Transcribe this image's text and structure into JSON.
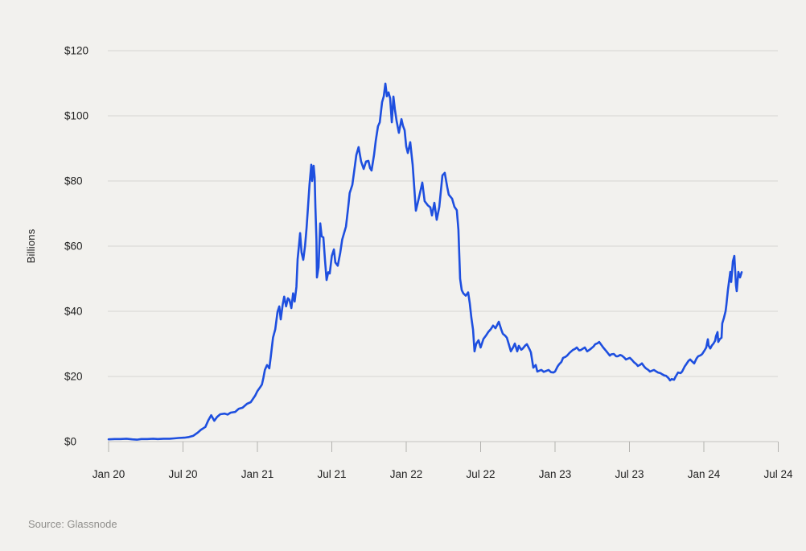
{
  "page": {
    "background": "#f2f1ee"
  },
  "chart": {
    "ylabel": "Billions",
    "source": "Source: Glassnode"
  },
  "chart_data": {
    "type": "line",
    "title": "",
    "xlabel": "",
    "ylabel": "Billions",
    "x_unit": "years since Jan 2020",
    "xlim": [
      0,
      4.5
    ],
    "ylim": [
      0,
      120
    ],
    "grid": true,
    "legend": "none",
    "palette": {
      "line_color": "#1e4fdf",
      "grid_color": "#d6d5d2",
      "axis_color": "#c4c3c0",
      "tick_color": "#b3b2af",
      "label_color": "#1f1f1f",
      "source_color": "#8f8e8b",
      "background": "#f2f1ee"
    },
    "x_ticks": [
      {
        "pos": 0.0,
        "label": "Jan 20"
      },
      {
        "pos": 0.5,
        "label": "Jul 20"
      },
      {
        "pos": 1.0,
        "label": "Jan 21"
      },
      {
        "pos": 1.5,
        "label": "Jul 21"
      },
      {
        "pos": 2.0,
        "label": "Jan 22"
      },
      {
        "pos": 2.5,
        "label": "Jul 22"
      },
      {
        "pos": 3.0,
        "label": "Jan 23"
      },
      {
        "pos": 3.5,
        "label": "Jul 23"
      },
      {
        "pos": 4.0,
        "label": "Jan 24"
      },
      {
        "pos": 4.5,
        "label": "Jul 24"
      }
    ],
    "y_ticks": [
      {
        "value": 0,
        "label": "$0"
      },
      {
        "value": 20,
        "label": "$20"
      },
      {
        "value": 40,
        "label": "$40"
      },
      {
        "value": 60,
        "label": "$60"
      },
      {
        "value": 80,
        "label": "$80"
      },
      {
        "value": 100,
        "label": "$100"
      },
      {
        "value": 120,
        "label": "$120"
      }
    ],
    "points": [
      [
        0.0,
        0.7
      ],
      [
        0.04,
        0.8
      ],
      [
        0.08,
        0.8
      ],
      [
        0.12,
        0.9
      ],
      [
        0.16,
        0.7
      ],
      [
        0.19,
        0.6
      ],
      [
        0.22,
        0.8
      ],
      [
        0.26,
        0.8
      ],
      [
        0.3,
        0.9
      ],
      [
        0.33,
        0.8
      ],
      [
        0.37,
        0.9
      ],
      [
        0.41,
        0.9
      ],
      [
        0.44,
        1.0
      ],
      [
        0.47,
        1.1
      ],
      [
        0.51,
        1.2
      ],
      [
        0.54,
        1.4
      ],
      [
        0.57,
        1.8
      ],
      [
        0.6,
        2.8
      ],
      [
        0.62,
        3.6
      ],
      [
        0.65,
        4.5
      ],
      [
        0.67,
        6.5
      ],
      [
        0.69,
        8.1
      ],
      [
        0.71,
        6.4
      ],
      [
        0.73,
        7.6
      ],
      [
        0.75,
        8.4
      ],
      [
        0.78,
        8.6
      ],
      [
        0.8,
        8.3
      ],
      [
        0.82,
        8.9
      ],
      [
        0.85,
        9.1
      ],
      [
        0.875,
        10.1
      ],
      [
        0.9,
        10.4
      ],
      [
        0.93,
        11.6
      ],
      [
        0.955,
        12.1
      ],
      [
        0.985,
        14.1
      ],
      [
        1.0,
        15.5
      ],
      [
        1.02,
        16.8
      ],
      [
        1.03,
        17.5
      ],
      [
        1.04,
        19.5
      ],
      [
        1.05,
        22.0
      ],
      [
        1.065,
        23.5
      ],
      [
        1.08,
        22.5
      ],
      [
        1.09,
        26.0
      ],
      [
        1.105,
        31.9
      ],
      [
        1.12,
        34.5
      ],
      [
        1.135,
        39.8
      ],
      [
        1.147,
        41.5
      ],
      [
        1.157,
        37.5
      ],
      [
        1.17,
        42.0
      ],
      [
        1.18,
        44.5
      ],
      [
        1.193,
        41.5
      ],
      [
        1.205,
        44.0
      ],
      [
        1.215,
        43.5
      ],
      [
        1.228,
        41.0
      ],
      [
        1.24,
        45.5
      ],
      [
        1.25,
        43.0
      ],
      [
        1.262,
        47.5
      ],
      [
        1.27,
        56.0
      ],
      [
        1.28,
        60.5
      ],
      [
        1.287,
        64.0
      ],
      [
        1.297,
        58.0
      ],
      [
        1.308,
        55.8
      ],
      [
        1.32,
        60.0
      ],
      [
        1.33,
        65.5
      ],
      [
        1.34,
        72.0
      ],
      [
        1.35,
        79.0
      ],
      [
        1.362,
        85.0
      ],
      [
        1.368,
        80.0
      ],
      [
        1.378,
        84.7
      ],
      [
        1.385,
        81.0
      ],
      [
        1.39,
        72.0
      ],
      [
        1.397,
        62.0
      ],
      [
        1.4,
        50.4
      ],
      [
        1.411,
        53.5
      ],
      [
        1.422,
        67.0
      ],
      [
        1.432,
        63.0
      ],
      [
        1.443,
        62.7
      ],
      [
        1.454,
        55.8
      ],
      [
        1.465,
        49.6
      ],
      [
        1.476,
        52.0
      ],
      [
        1.486,
        51.6
      ],
      [
        1.5,
        57.0
      ],
      [
        1.514,
        59.0
      ],
      [
        1.524,
        55.0
      ],
      [
        1.54,
        54.0
      ],
      [
        1.557,
        58.0
      ],
      [
        1.57,
        62.0
      ],
      [
        1.595,
        66.0
      ],
      [
        1.61,
        72.0
      ],
      [
        1.62,
        76.3
      ],
      [
        1.638,
        78.8
      ],
      [
        1.65,
        83.0
      ],
      [
        1.665,
        88.0
      ],
      [
        1.68,
        90.4
      ],
      [
        1.697,
        86.0
      ],
      [
        1.714,
        83.7
      ],
      [
        1.73,
        86.0
      ],
      [
        1.746,
        86.2
      ],
      [
        1.757,
        84.0
      ],
      [
        1.767,
        83.2
      ],
      [
        1.784,
        88.0
      ],
      [
        1.795,
        92.3
      ],
      [
        1.81,
        96.8
      ],
      [
        1.822,
        98.0
      ],
      [
        1.838,
        104.2
      ],
      [
        1.849,
        106.0
      ],
      [
        1.86,
        109.9
      ],
      [
        1.87,
        106.0
      ],
      [
        1.881,
        107.2
      ],
      [
        1.892,
        105.4
      ],
      [
        1.903,
        98.0
      ],
      [
        1.914,
        105.9
      ],
      [
        1.924,
        102.0
      ],
      [
        1.935,
        98.5
      ],
      [
        1.951,
        94.8
      ],
      [
        1.968,
        99.0
      ],
      [
        1.978,
        97.0
      ],
      [
        1.989,
        95.6
      ],
      [
        2.0,
        90.6
      ],
      [
        2.011,
        88.6
      ],
      [
        2.027,
        91.9
      ],
      [
        2.043,
        85.0
      ],
      [
        2.065,
        70.9
      ],
      [
        2.081,
        74.0
      ],
      [
        2.108,
        79.5
      ],
      [
        2.124,
        73.8
      ],
      [
        2.146,
        72.5
      ],
      [
        2.162,
        71.9
      ],
      [
        2.173,
        69.4
      ],
      [
        2.189,
        73.3
      ],
      [
        2.205,
        68.1
      ],
      [
        2.222,
        72.0
      ],
      [
        2.243,
        81.7
      ],
      [
        2.259,
        82.5
      ],
      [
        2.276,
        78.0
      ],
      [
        2.286,
        75.8
      ],
      [
        2.308,
        74.6
      ],
      [
        2.324,
        72.1
      ],
      [
        2.34,
        71.0
      ],
      [
        2.351,
        65.0
      ],
      [
        2.362,
        50.0
      ],
      [
        2.373,
        46.5
      ],
      [
        2.384,
        45.5
      ],
      [
        2.4,
        44.8
      ],
      [
        2.416,
        45.8
      ],
      [
        2.427,
        42.5
      ],
      [
        2.438,
        38.0
      ],
      [
        2.449,
        34.3
      ],
      [
        2.459,
        27.7
      ],
      [
        2.47,
        30.0
      ],
      [
        2.486,
        31.1
      ],
      [
        2.5,
        28.9
      ],
      [
        2.519,
        31.5
      ],
      [
        2.535,
        32.5
      ],
      [
        2.551,
        33.6
      ],
      [
        2.568,
        34.5
      ],
      [
        2.584,
        35.6
      ],
      [
        2.6,
        34.8
      ],
      [
        2.622,
        36.8
      ],
      [
        2.638,
        34.5
      ],
      [
        2.649,
        33.1
      ],
      [
        2.665,
        32.5
      ],
      [
        2.676,
        31.9
      ],
      [
        2.692,
        29.5
      ],
      [
        2.703,
        27.7
      ],
      [
        2.719,
        29.0
      ],
      [
        2.73,
        30.1
      ],
      [
        2.746,
        27.7
      ],
      [
        2.757,
        29.4
      ],
      [
        2.773,
        28.2
      ],
      [
        2.784,
        28.6
      ],
      [
        2.8,
        29.5
      ],
      [
        2.811,
        29.9
      ],
      [
        2.827,
        28.5
      ],
      [
        2.838,
        27.4
      ],
      [
        2.854,
        22.7
      ],
      [
        2.87,
        23.5
      ],
      [
        2.881,
        21.5
      ],
      [
        2.897,
        21.8
      ],
      [
        2.908,
        22.0
      ],
      [
        2.924,
        21.4
      ],
      [
        2.941,
        21.7
      ],
      [
        2.957,
        22.0
      ],
      [
        2.973,
        21.3
      ],
      [
        2.989,
        21.2
      ],
      [
        3.0,
        21.5
      ],
      [
        3.016,
        23.0
      ],
      [
        3.027,
        23.7
      ],
      [
        3.043,
        24.5
      ],
      [
        3.054,
        25.7
      ],
      [
        3.07,
        26.0
      ],
      [
        3.081,
        26.4
      ],
      [
        3.097,
        27.2
      ],
      [
        3.119,
        28.1
      ],
      [
        3.135,
        28.5
      ],
      [
        3.146,
        28.9
      ],
      [
        3.162,
        28.0
      ],
      [
        3.173,
        28.1
      ],
      [
        3.189,
        28.6
      ],
      [
        3.2,
        28.9
      ],
      [
        3.216,
        27.7
      ],
      [
        3.232,
        28.2
      ],
      [
        3.243,
        28.6
      ],
      [
        3.259,
        29.2
      ],
      [
        3.27,
        29.9
      ],
      [
        3.286,
        30.2
      ],
      [
        3.297,
        30.6
      ],
      [
        3.314,
        29.5
      ],
      [
        3.324,
        28.9
      ],
      [
        3.34,
        28.0
      ],
      [
        3.351,
        27.4
      ],
      [
        3.368,
        26.4
      ],
      [
        3.378,
        26.8
      ],
      [
        3.395,
        26.9
      ],
      [
        3.411,
        26.2
      ],
      [
        3.422,
        26.2
      ],
      [
        3.438,
        26.6
      ],
      [
        3.449,
        26.4
      ],
      [
        3.465,
        25.8
      ],
      [
        3.476,
        25.2
      ],
      [
        3.492,
        25.5
      ],
      [
        3.503,
        25.7
      ],
      [
        3.519,
        25.0
      ],
      [
        3.53,
        24.4
      ],
      [
        3.546,
        23.8
      ],
      [
        3.557,
        23.2
      ],
      [
        3.573,
        23.6
      ],
      [
        3.584,
        24.0
      ],
      [
        3.6,
        23.0
      ],
      [
        3.611,
        22.5
      ],
      [
        3.627,
        22.0
      ],
      [
        3.638,
        21.5
      ],
      [
        3.654,
        21.8
      ],
      [
        3.665,
        22.0
      ],
      [
        3.681,
        21.5
      ],
      [
        3.692,
        21.2
      ],
      [
        3.708,
        21.0
      ],
      [
        3.719,
        20.7
      ],
      [
        3.735,
        20.3
      ],
      [
        3.746,
        20.2
      ],
      [
        3.762,
        19.5
      ],
      [
        3.773,
        18.8
      ],
      [
        3.784,
        19.2
      ],
      [
        3.8,
        19.0
      ],
      [
        3.811,
        20.0
      ],
      [
        3.827,
        21.2
      ],
      [
        3.843,
        21.0
      ],
      [
        3.854,
        21.5
      ],
      [
        3.87,
        23.0
      ],
      [
        3.881,
        23.7
      ],
      [
        3.897,
        24.8
      ],
      [
        3.908,
        25.2
      ],
      [
        3.924,
        24.5
      ],
      [
        3.935,
        24.0
      ],
      [
        3.951,
        25.5
      ],
      [
        3.962,
        26.2
      ],
      [
        3.978,
        26.5
      ],
      [
        3.989,
        26.9
      ],
      [
        4.005,
        28.0
      ],
      [
        4.016,
        28.9
      ],
      [
        4.027,
        31.4
      ],
      [
        4.032,
        29.5
      ],
      [
        4.043,
        28.6
      ],
      [
        4.054,
        29.5
      ],
      [
        4.065,
        30.1
      ],
      [
        4.076,
        31.0
      ],
      [
        4.081,
        32.3
      ],
      [
        4.092,
        33.6
      ],
      [
        4.097,
        30.6
      ],
      [
        4.108,
        31.5
      ],
      [
        4.119,
        31.9
      ],
      [
        4.124,
        36.3
      ],
      [
        4.135,
        38.0
      ],
      [
        4.146,
        40.0
      ],
      [
        4.151,
        41.7
      ],
      [
        4.162,
        46.7
      ],
      [
        4.173,
        50.4
      ],
      [
        4.178,
        52.1
      ],
      [
        4.184,
        49.0
      ],
      [
        4.195,
        55.3
      ],
      [
        4.205,
        57.0
      ],
      [
        4.216,
        47.9
      ],
      [
        4.221,
        46.2
      ],
      [
        4.232,
        52.1
      ],
      [
        4.243,
        50.4
      ],
      [
        4.254,
        52.0
      ]
    ]
  }
}
